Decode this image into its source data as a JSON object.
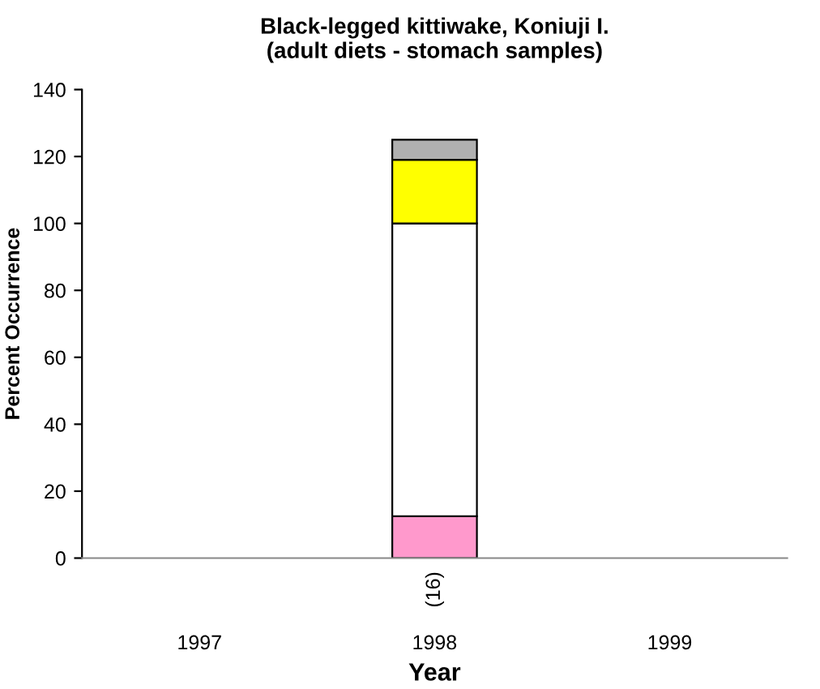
{
  "chart_data": {
    "type": "bar",
    "title": "Black-legged kittiwake, Koniuji I.\n(adult diets - stomach samples)",
    "xlabel": "Year",
    "ylabel": "Percent Occurrence",
    "categories": [
      "1997",
      "1998",
      "1999"
    ],
    "stacked": true,
    "series": [
      {
        "color": "#ff99cc",
        "values": [
          null,
          12.5,
          null
        ]
      },
      {
        "color": "#ffffff",
        "values": [
          null,
          87.5,
          null
        ]
      },
      {
        "color": "#ffff00",
        "values": [
          null,
          19,
          null
        ]
      },
      {
        "color": "#b0b0b0",
        "values": [
          null,
          6,
          null
        ]
      }
    ],
    "ylim": [
      0,
      140
    ],
    "yticks": [
      0,
      20,
      40,
      60,
      80,
      100,
      120,
      140
    ],
    "grid": false,
    "legend": false,
    "annotations": [
      "(16)"
    ]
  }
}
